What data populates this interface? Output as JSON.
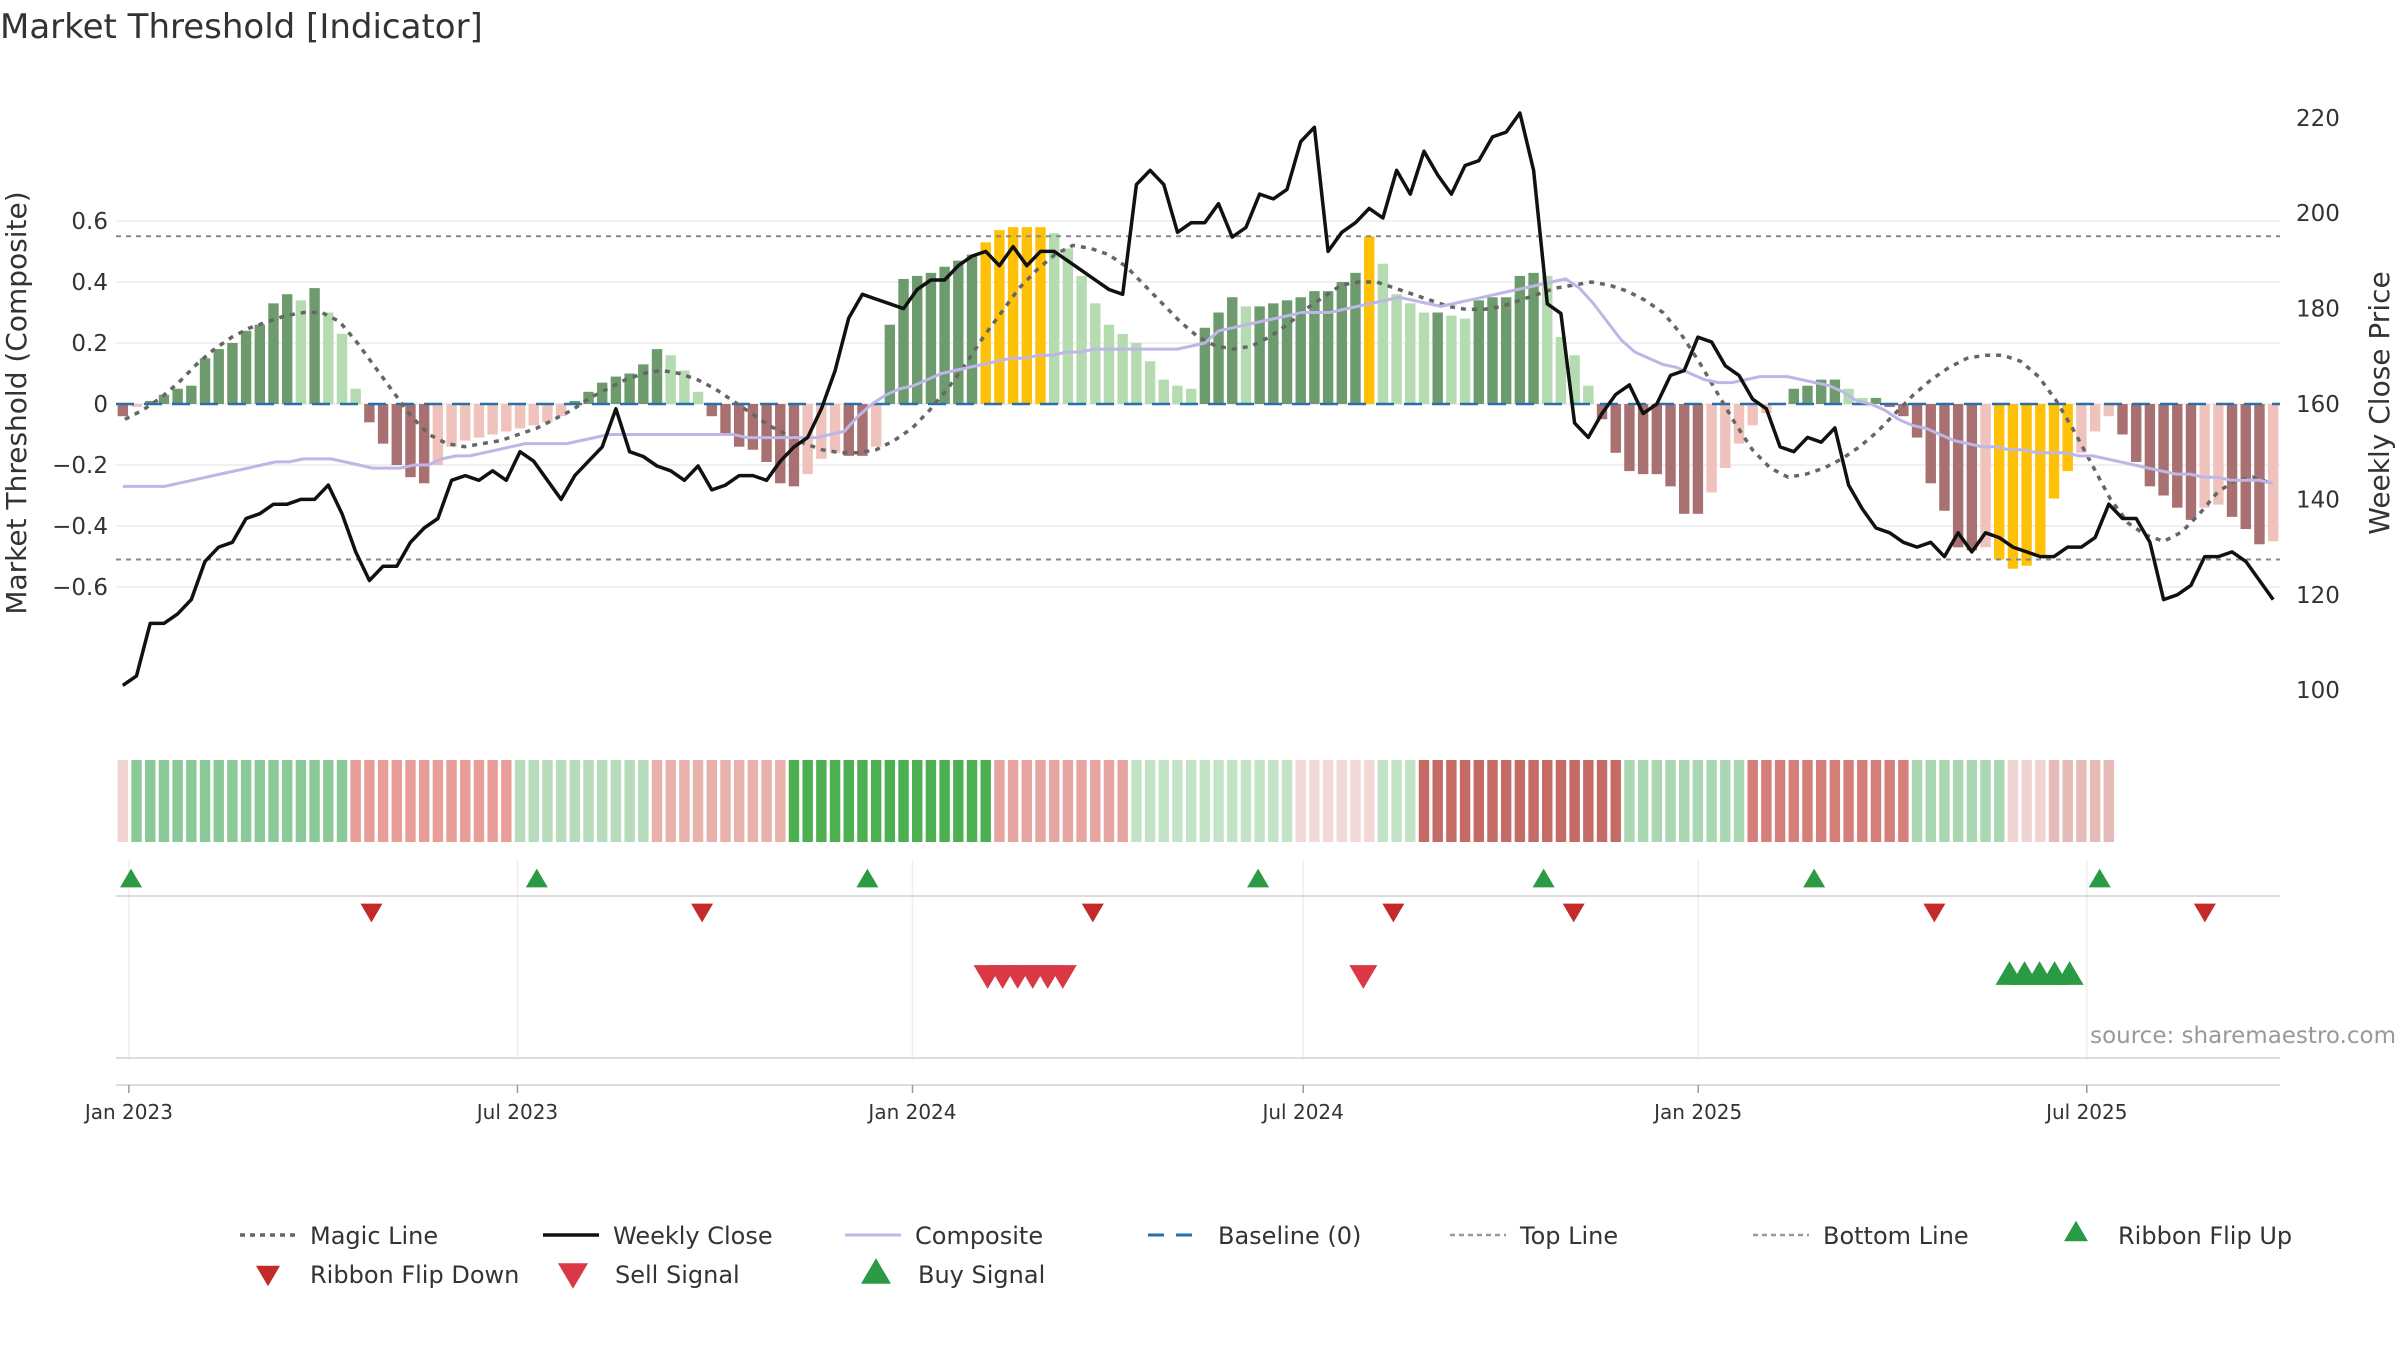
{
  "chart_data": {
    "type": "combo-bar-line",
    "title": "Market Threshold [Indicator]",
    "y_left_label": "Market Threshold (Composite)",
    "y_right_label": "Weekly Close Price",
    "y_left_range": [
      -0.6,
      0.6
    ],
    "y_left_ticks": [
      "0.6",
      "0.4",
      "0.2",
      "0",
      "−0.2",
      "−0.4",
      "−0.6"
    ],
    "y_right_range": [
      100,
      220
    ],
    "y_right_ticks": [
      "220",
      "200",
      "180",
      "160",
      "140",
      "120",
      "100"
    ],
    "x_range": [
      "2022-12-26",
      "2025-09-29"
    ],
    "x_tick_labels": [
      "Jan 2023",
      "Jul 2023",
      "Jan 2024",
      "Jul 2024",
      "Jan 2025",
      "Jul 2025"
    ],
    "top_line": 0.55,
    "bottom_line": -0.51,
    "baseline": 0,
    "source": "source: sharemaestro.com",
    "colors": {
      "bull_strong": "#6e9b6e",
      "bull_weak": "#b5dcb0",
      "bear_strong": "#a87070",
      "bear_weak": "#f0c2bc",
      "extreme": "#ffc107",
      "magic": "#666666",
      "close": "#111111",
      "composite": "#bdb6e6",
      "baseline": "#2a6fa8",
      "buy": "#2b9a45",
      "sell": "#d93844",
      "ribbon_up": "#2b9a45",
      "ribbon_down": "#c42a2a"
    },
    "bars": [
      -0.04,
      -0.01,
      0.01,
      0.03,
      0.05,
      0.06,
      0.15,
      0.18,
      0.2,
      0.24,
      0.26,
      0.33,
      0.36,
      0.34,
      0.38,
      0.3,
      0.23,
      0.05,
      -0.06,
      -0.13,
      -0.2,
      -0.24,
      -0.26,
      -0.2,
      -0.14,
      -0.12,
      -0.11,
      -0.1,
      -0.09,
      -0.08,
      -0.07,
      -0.06,
      -0.04,
      0.01,
      0.04,
      0.07,
      0.09,
      0.1,
      0.13,
      0.18,
      0.16,
      0.11,
      0.04,
      -0.04,
      -0.1,
      -0.14,
      -0.15,
      -0.19,
      -0.26,
      -0.27,
      -0.23,
      -0.18,
      -0.16,
      -0.17,
      -0.17,
      -0.14,
      0.26,
      0.41,
      0.42,
      0.43,
      0.45,
      0.47,
      0.49,
      0.53,
      0.57,
      0.58,
      0.58,
      0.58,
      0.56,
      0.51,
      0.42,
      0.33,
      0.26,
      0.23,
      0.2,
      0.14,
      0.08,
      0.06,
      0.05,
      0.25,
      0.3,
      0.35,
      0.32,
      0.32,
      0.33,
      0.34,
      0.35,
      0.37,
      0.37,
      0.4,
      0.43,
      0.55,
      0.46,
      0.36,
      0.33,
      0.3,
      0.3,
      0.29,
      0.28,
      0.34,
      0.35,
      0.35,
      0.42,
      0.43,
      0.42,
      0.22,
      0.16,
      0.06,
      -0.05,
      -0.16,
      -0.22,
      -0.23,
      -0.23,
      -0.27,
      -0.36,
      -0.36,
      -0.29,
      -0.21,
      -0.13,
      -0.07,
      -0.03,
      0.0,
      0.05,
      0.06,
      0.08,
      0.08,
      0.05,
      0.02,
      0.02,
      -0.01,
      -0.04,
      -0.11,
      -0.26,
      -0.35,
      -0.47,
      -0.48,
      -0.47,
      -0.51,
      -0.54,
      -0.53,
      -0.5,
      -0.31,
      -0.22,
      -0.16,
      -0.09,
      -0.04,
      -0.1,
      -0.19,
      -0.27,
      -0.3,
      -0.34,
      -0.38,
      -0.34,
      -0.33,
      -0.37,
      -0.41,
      -0.46,
      -0.45
    ],
    "weekly_close": [
      101,
      103,
      114,
      114,
      116,
      119,
      127,
      130,
      131,
      136,
      137,
      139,
      139,
      140,
      140,
      143,
      137,
      129,
      123,
      126,
      126,
      131,
      134,
      136,
      144,
      145,
      144,
      146,
      144,
      150,
      148,
      144,
      140,
      145,
      148,
      151,
      159,
      150,
      149,
      147,
      146,
      144,
      147,
      142,
      143,
      145,
      145,
      144,
      148,
      151,
      153,
      159,
      167,
      178,
      183,
      182,
      181,
      180,
      184,
      186,
      186,
      189,
      191,
      192,
      189,
      193,
      189,
      192,
      192,
      190,
      188,
      186,
      184,
      183,
      206,
      209,
      206,
      196,
      198,
      198,
      202,
      195,
      197,
      204,
      203,
      205,
      215,
      218,
      192,
      196,
      198,
      201,
      199,
      209,
      204,
      213,
      208,
      204,
      210,
      211,
      216,
      217,
      221,
      209,
      181,
      179,
      156,
      153,
      158,
      162,
      164,
      158,
      160,
      166,
      167,
      174,
      173,
      168,
      166,
      161,
      159,
      151,
      150,
      153,
      152,
      155,
      143,
      138,
      134,
      133,
      131,
      130,
      131,
      128,
      133,
      129,
      133,
      132,
      130,
      129,
      128,
      128,
      130,
      130,
      132,
      139,
      136,
      136,
      131,
      119,
      120,
      122,
      128,
      128,
      129,
      127,
      123,
      119
    ],
    "composite": [
      -0.27,
      -0.27,
      -0.27,
      -0.27,
      -0.26,
      -0.25,
      -0.24,
      -0.23,
      -0.22,
      -0.21,
      -0.2,
      -0.19,
      -0.19,
      -0.18,
      -0.18,
      -0.18,
      -0.19,
      -0.2,
      -0.21,
      -0.21,
      -0.21,
      -0.2,
      -0.2,
      -0.18,
      -0.17,
      -0.17,
      -0.16,
      -0.15,
      -0.14,
      -0.13,
      -0.13,
      -0.13,
      -0.13,
      -0.12,
      -0.11,
      -0.1,
      -0.1,
      -0.1,
      -0.1,
      -0.1,
      -0.1,
      -0.1,
      -0.1,
      -0.1,
      -0.1,
      -0.11,
      -0.11,
      -0.11,
      -0.11,
      -0.11,
      -0.11,
      -0.1,
      -0.09,
      -0.04,
      0.0,
      0.03,
      0.05,
      0.06,
      0.08,
      0.1,
      0.11,
      0.12,
      0.13,
      0.14,
      0.15,
      0.15,
      0.16,
      0.16,
      0.17,
      0.17,
      0.18,
      0.18,
      0.18,
      0.18,
      0.18,
      0.18,
      0.18,
      0.19,
      0.2,
      0.24,
      0.25,
      0.26,
      0.27,
      0.28,
      0.29,
      0.3,
      0.3,
      0.3,
      0.31,
      0.32,
      0.33,
      0.34,
      0.35,
      0.34,
      0.33,
      0.32,
      0.33,
      0.34,
      0.35,
      0.36,
      0.37,
      0.38,
      0.39,
      0.4,
      0.41,
      0.38,
      0.33,
      0.27,
      0.21,
      0.17,
      0.15,
      0.13,
      0.12,
      0.1,
      0.08,
      0.07,
      0.07,
      0.08,
      0.09,
      0.09,
      0.09,
      0.08,
      0.07,
      0.06,
      0.04,
      0.01,
      0.0,
      -0.02,
      -0.05,
      -0.07,
      -0.08,
      -0.1,
      -0.12,
      -0.13,
      -0.14,
      -0.14,
      -0.15,
      -0.15,
      -0.16,
      -0.16,
      -0.16,
      -0.17,
      -0.17,
      -0.18,
      -0.19,
      -0.2,
      -0.21,
      -0.22,
      -0.23,
      -0.23,
      -0.24,
      -0.24,
      -0.25,
      -0.25,
      -0.25,
      -0.26
    ],
    "magic_line": [
      -0.05,
      -0.02,
      0.02,
      0.07,
      0.13,
      0.18,
      0.22,
      0.25,
      0.27,
      0.29,
      0.3,
      0.3,
      0.27,
      0.2,
      0.12,
      0.04,
      -0.04,
      -0.1,
      -0.13,
      -0.14,
      -0.13,
      -0.12,
      -0.1,
      -0.08,
      -0.05,
      -0.02,
      0.02,
      0.05,
      0.08,
      0.1,
      0.11,
      0.1,
      0.08,
      0.05,
      0.01,
      -0.03,
      -0.07,
      -0.1,
      -0.13,
      -0.15,
      -0.16,
      -0.16,
      -0.15,
      -0.12,
      -0.08,
      -0.02,
      0.05,
      0.13,
      0.22,
      0.3,
      0.38,
      0.44,
      0.49,
      0.52,
      0.51,
      0.49,
      0.45,
      0.39,
      0.33,
      0.27,
      0.22,
      0.19,
      0.18,
      0.19,
      0.22,
      0.26,
      0.31,
      0.35,
      0.39,
      0.4,
      0.4,
      0.38,
      0.36,
      0.34,
      0.32,
      0.31,
      0.31,
      0.32,
      0.34,
      0.36,
      0.38,
      0.39,
      0.4,
      0.39,
      0.37,
      0.34,
      0.3,
      0.23,
      0.14,
      0.04,
      -0.06,
      -0.15,
      -0.21,
      -0.24,
      -0.23,
      -0.21,
      -0.18,
      -0.14,
      -0.09,
      -0.03,
      0.03,
      0.08,
      0.12,
      0.15,
      0.16,
      0.16,
      0.14,
      0.09,
      0.01,
      -0.09,
      -0.2,
      -0.31,
      -0.39,
      -0.43,
      -0.45,
      -0.42,
      -0.36,
      -0.29,
      -0.25,
      -0.24,
      -0.26
    ],
    "ribbon_colors": [
      "#f0d4d2",
      "#8cc998",
      "#e89d98",
      "#b7dcbc",
      "#e8b1ac",
      "#4caf50",
      "#e6a5a1",
      "#c3e3c6",
      "#f2d8d6",
      "#c3e3c6",
      "#c56b66",
      "#aad7b1",
      "#d47f7a",
      "#aad7b1",
      "#f0d4d2",
      "#e7bbb7"
    ],
    "ribbon_segment_weeks": [
      1,
      16,
      12,
      10,
      10,
      15,
      10,
      12,
      6,
      3,
      15,
      9,
      12,
      7,
      3,
      5
    ],
    "ribbon_flip_up": [
      "2023-01-02",
      "2023-07-10",
      "2023-12-11",
      "2024-06-10",
      "2024-10-21",
      "2025-02-24",
      "2025-07-07"
    ],
    "ribbon_flip_down": [
      "2023-04-24",
      "2023-09-25",
      "2024-03-25",
      "2024-08-12",
      "2024-11-04",
      "2025-04-21",
      "2025-08-25"
    ],
    "sell_signals": [
      "2024-02-05",
      "2024-02-12",
      "2024-02-19",
      "2024-02-26",
      "2024-03-04",
      "2024-03-11",
      "2024-07-29"
    ],
    "buy_signals": [
      "2025-05-26",
      "2025-06-02",
      "2025-06-09",
      "2025-06-16",
      "2025-06-23"
    ],
    "legend": [
      "Magic Line",
      "Weekly Close",
      "Composite",
      "Baseline (0)",
      "Top Line",
      "Bottom Line",
      "Ribbon Flip Up",
      "Ribbon Flip Down",
      "Sell Signal",
      "Buy Signal"
    ]
  }
}
